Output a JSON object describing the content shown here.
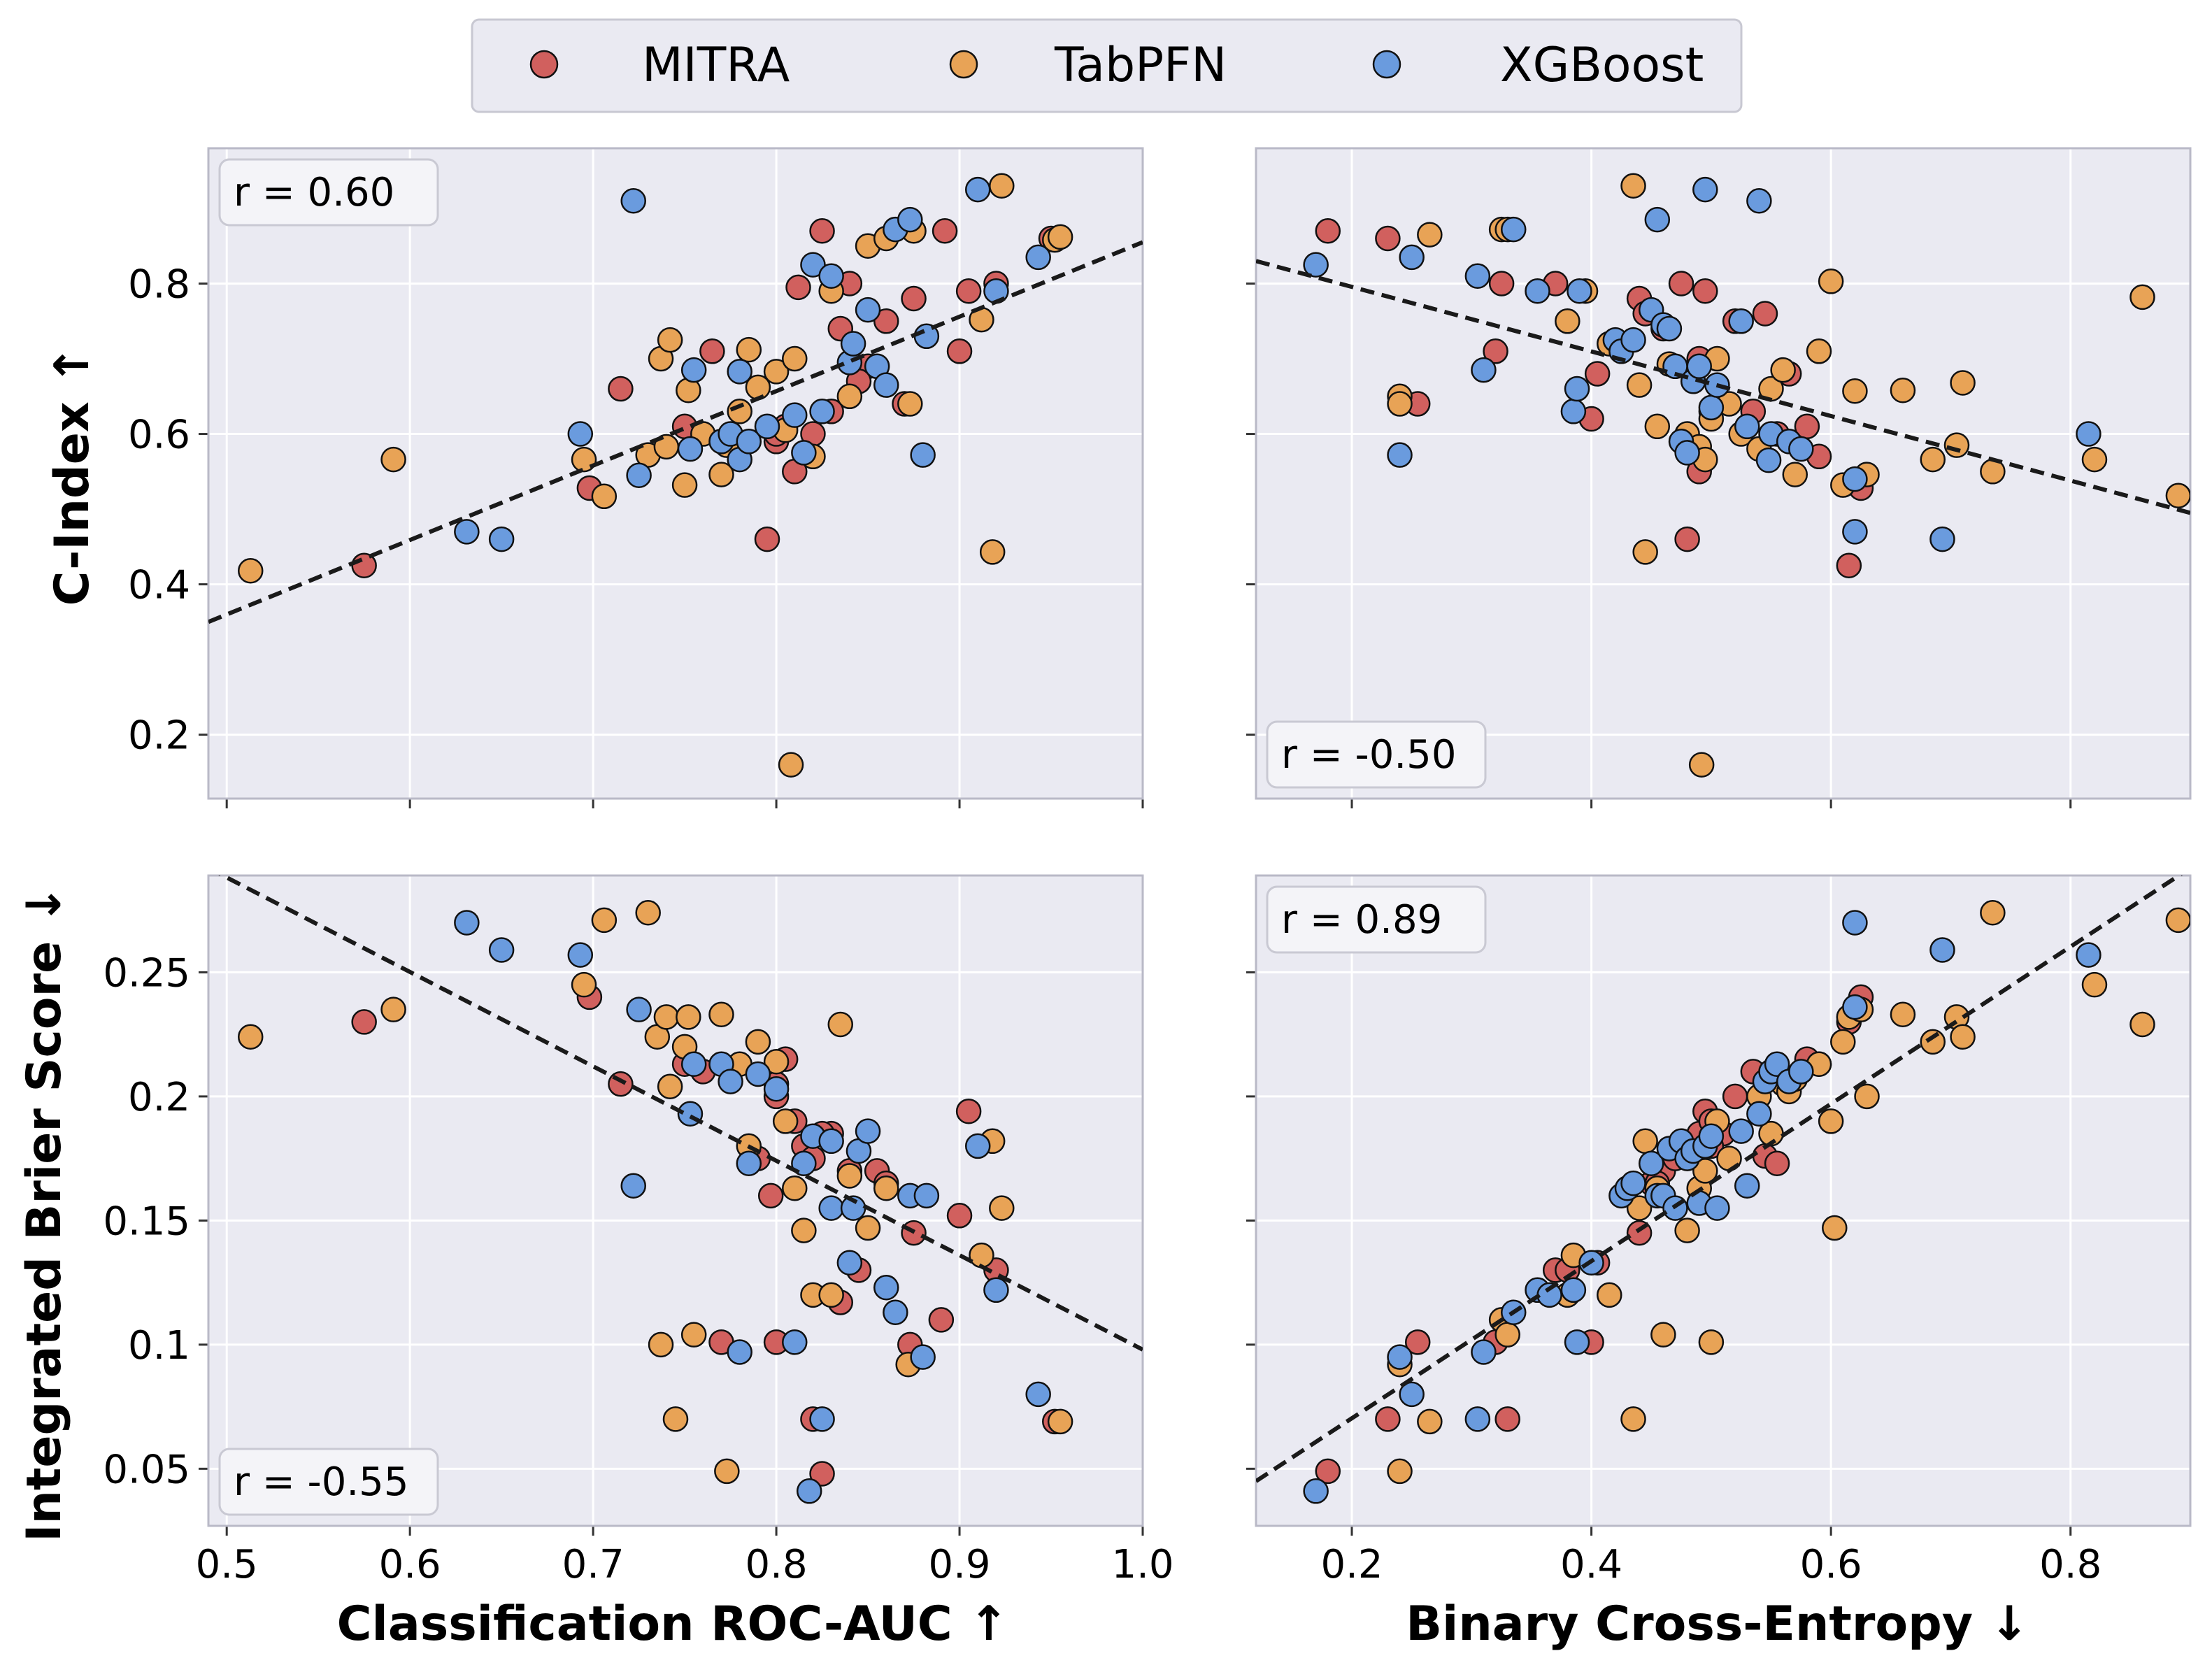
{
  "colors": {
    "mitra": "#D1605E",
    "tabpfn": "#E8A356",
    "xgboost": "#6A9BDE",
    "panel_bg": "#EAEAF2",
    "grid": "#FFFFFF",
    "fit_line": "#1a1a1a"
  },
  "legend": {
    "items": [
      {
        "key": "mitra",
        "label": "MITRA"
      },
      {
        "key": "tabpfn",
        "label": "TabPFN"
      },
      {
        "key": "xgboost",
        "label": "XGBoost"
      }
    ]
  },
  "axes_labels": {
    "x_left": "Classification ROC-AUC ↑",
    "x_right": "Binary Cross-Entropy ↓",
    "y_top": "C-Index ↑",
    "y_bottom": "Integrated Brier Score ↓"
  },
  "chart_data": [
    {
      "type": "scatter",
      "id": "top-left",
      "xlabel": "Classification ROC-AUC ↑",
      "ylabel": "C-Index ↑",
      "xlim": [
        0.49,
        1.0
      ],
      "ylim": [
        0.115,
        0.98
      ],
      "xticks": [
        0.5,
        0.6,
        0.7,
        0.8,
        0.9,
        1.0
      ],
      "yticks": [
        0.2,
        0.4,
        0.6,
        0.8
      ],
      "annotation": "r = 0.60",
      "annotation_position": "top-left",
      "fit_line": {
        "x": [
          0.49,
          1.0
        ],
        "y": [
          0.35,
          0.855
        ]
      },
      "series": [
        {
          "name": "MITRA",
          "x": [
            0.575,
            0.698,
            0.715,
            0.765,
            0.75,
            0.795,
            0.8,
            0.805,
            0.81,
            0.82,
            0.825,
            0.83,
            0.84,
            0.85,
            0.86,
            0.87,
            0.875,
            0.892,
            0.9,
            0.905,
            0.92,
            0.95,
            0.812,
            0.845,
            0.835,
            0.8
          ],
          "y": [
            0.425,
            0.528,
            0.66,
            0.71,
            0.61,
            0.46,
            0.59,
            0.61,
            0.55,
            0.6,
            0.87,
            0.63,
            0.8,
            0.69,
            0.75,
            0.64,
            0.78,
            0.87,
            0.71,
            0.79,
            0.8,
            0.86,
            0.795,
            0.67,
            0.74,
            0.6
          ]
        },
        {
          "name": "TabPFN",
          "x": [
            0.513,
            0.591,
            0.695,
            0.706,
            0.73,
            0.737,
            0.74,
            0.742,
            0.75,
            0.752,
            0.76,
            0.77,
            0.773,
            0.78,
            0.785,
            0.79,
            0.8,
            0.805,
            0.808,
            0.81,
            0.82,
            0.83,
            0.84,
            0.85,
            0.86,
            0.873,
            0.875,
            0.912,
            0.918,
            0.923,
            0.952,
            0.955
          ],
          "y": [
            0.418,
            0.566,
            0.566,
            0.517,
            0.572,
            0.7,
            0.583,
            0.725,
            0.532,
            0.658,
            0.6,
            0.546,
            0.585,
            0.63,
            0.712,
            0.662,
            0.683,
            0.605,
            0.16,
            0.7,
            0.57,
            0.79,
            0.65,
            0.85,
            0.86,
            0.64,
            0.87,
            0.752,
            0.443,
            0.93,
            0.858,
            0.862
          ]
        },
        {
          "name": "XGBoost",
          "x": [
            0.631,
            0.65,
            0.693,
            0.722,
            0.725,
            0.753,
            0.755,
            0.77,
            0.775,
            0.78,
            0.785,
            0.795,
            0.81,
            0.815,
            0.82,
            0.825,
            0.83,
            0.84,
            0.842,
            0.85,
            0.855,
            0.86,
            0.865,
            0.873,
            0.88,
            0.882,
            0.91,
            0.92,
            0.943,
            0.78
          ],
          "y": [
            0.47,
            0.46,
            0.6,
            0.91,
            0.545,
            0.58,
            0.685,
            0.59,
            0.6,
            0.566,
            0.59,
            0.61,
            0.625,
            0.575,
            0.825,
            0.63,
            0.81,
            0.695,
            0.72,
            0.765,
            0.69,
            0.665,
            0.872,
            0.885,
            0.572,
            0.73,
            0.925,
            0.79,
            0.835,
            0.683
          ]
        }
      ]
    },
    {
      "type": "scatter",
      "id": "top-right",
      "xlabel": "Binary Cross-Entropy ↓",
      "ylabel": "C-Index ↑",
      "xlim": [
        0.12,
        0.9
      ],
      "ylim": [
        0.115,
        0.98
      ],
      "xticks": [
        0.2,
        0.4,
        0.6,
        0.8
      ],
      "yticks": [
        0.2,
        0.4,
        0.6,
        0.8
      ],
      "annotation": "r = -0.50",
      "annotation_position": "bottom-left",
      "fit_line": {
        "x": [
          0.12,
          0.9
        ],
        "y": [
          0.83,
          0.495
        ]
      },
      "series": [
        {
          "name": "MITRA",
          "x": [
            0.18,
            0.23,
            0.255,
            0.32,
            0.325,
            0.37,
            0.4,
            0.405,
            0.44,
            0.445,
            0.46,
            0.475,
            0.48,
            0.49,
            0.495,
            0.5,
            0.52,
            0.535,
            0.545,
            0.555,
            0.565,
            0.58,
            0.59,
            0.615,
            0.625,
            0.49
          ],
          "y": [
            0.87,
            0.86,
            0.64,
            0.71,
            0.8,
            0.8,
            0.62,
            0.68,
            0.78,
            0.76,
            0.74,
            0.8,
            0.46,
            0.55,
            0.79,
            0.63,
            0.75,
            0.63,
            0.76,
            0.6,
            0.68,
            0.61,
            0.57,
            0.425,
            0.528,
            0.7
          ]
        },
        {
          "name": "TabPFN",
          "x": [
            0.24,
            0.24,
            0.265,
            0.325,
            0.33,
            0.38,
            0.395,
            0.415,
            0.435,
            0.44,
            0.445,
            0.455,
            0.465,
            0.48,
            0.49,
            0.492,
            0.495,
            0.505,
            0.515,
            0.525,
            0.54,
            0.55,
            0.56,
            0.57,
            0.59,
            0.6,
            0.61,
            0.62,
            0.63,
            0.66,
            0.685,
            0.705,
            0.71,
            0.735,
            0.82,
            0.86,
            0.89,
            0.5
          ],
          "y": [
            0.65,
            0.64,
            0.865,
            0.872,
            0.872,
            0.75,
            0.79,
            0.72,
            0.93,
            0.665,
            0.443,
            0.61,
            0.693,
            0.6,
            0.583,
            0.16,
            0.566,
            0.7,
            0.64,
            0.6,
            0.58,
            0.66,
            0.685,
            0.546,
            0.71,
            0.803,
            0.532,
            0.657,
            0.546,
            0.658,
            0.566,
            0.585,
            0.668,
            0.55,
            0.566,
            0.782,
            0.518,
            0.62
          ]
        },
        {
          "name": "XGBoost",
          "x": [
            0.17,
            0.25,
            0.305,
            0.31,
            0.335,
            0.355,
            0.385,
            0.388,
            0.39,
            0.42,
            0.425,
            0.435,
            0.45,
            0.455,
            0.46,
            0.465,
            0.47,
            0.475,
            0.48,
            0.485,
            0.49,
            0.495,
            0.5,
            0.505,
            0.525,
            0.53,
            0.54,
            0.548,
            0.55,
            0.565,
            0.575,
            0.62,
            0.62,
            0.693,
            0.815,
            0.24
          ],
          "y": [
            0.825,
            0.835,
            0.81,
            0.685,
            0.872,
            0.79,
            0.63,
            0.66,
            0.79,
            0.725,
            0.71,
            0.725,
            0.765,
            0.885,
            0.745,
            0.74,
            0.69,
            0.59,
            0.575,
            0.67,
            0.69,
            0.925,
            0.635,
            0.665,
            0.75,
            0.61,
            0.91,
            0.565,
            0.6,
            0.59,
            0.58,
            0.47,
            0.54,
            0.46,
            0.6,
            0.572
          ]
        }
      ]
    },
    {
      "type": "scatter",
      "id": "bottom-left",
      "xlabel": "Classification ROC-AUC ↑",
      "ylabel": "Integrated Brier Score ↓",
      "xlim": [
        0.49,
        1.0
      ],
      "ylim": [
        0.027,
        0.289
      ],
      "xticks": [
        0.5,
        0.6,
        0.7,
        0.8,
        0.9,
        1.0
      ],
      "yticks": [
        0.05,
        0.1,
        0.15,
        0.2,
        0.25
      ],
      "annotation": "r = -0.55",
      "annotation_position": "bottom-left",
      "fit_line": {
        "x": [
          0.49,
          1.0
        ],
        "y": [
          0.292,
          0.098
        ]
      },
      "series": [
        {
          "name": "MITRA",
          "x": [
            0.575,
            0.698,
            0.715,
            0.75,
            0.76,
            0.77,
            0.79,
            0.797,
            0.8,
            0.8,
            0.805,
            0.81,
            0.815,
            0.82,
            0.825,
            0.83,
            0.835,
            0.84,
            0.845,
            0.855,
            0.86,
            0.873,
            0.875,
            0.89,
            0.9,
            0.905,
            0.92,
            0.952,
            0.82,
            0.825,
            0.8
          ],
          "y": [
            0.23,
            0.24,
            0.205,
            0.213,
            0.21,
            0.101,
            0.175,
            0.16,
            0.2,
            0.101,
            0.215,
            0.19,
            0.18,
            0.07,
            0.048,
            0.185,
            0.117,
            0.17,
            0.13,
            0.17,
            0.165,
            0.1,
            0.145,
            0.11,
            0.152,
            0.194,
            0.13,
            0.069,
            0.175,
            0.185,
            0.205
          ]
        },
        {
          "name": "TabPFN",
          "x": [
            0.513,
            0.591,
            0.695,
            0.706,
            0.73,
            0.735,
            0.737,
            0.74,
            0.742,
            0.745,
            0.75,
            0.752,
            0.755,
            0.77,
            0.773,
            0.78,
            0.785,
            0.79,
            0.8,
            0.805,
            0.81,
            0.815,
            0.82,
            0.83,
            0.835,
            0.84,
            0.85,
            0.86,
            0.872,
            0.912,
            0.918,
            0.923,
            0.955
          ],
          "y": [
            0.224,
            0.235,
            0.245,
            0.271,
            0.274,
            0.224,
            0.1,
            0.232,
            0.204,
            0.07,
            0.22,
            0.232,
            0.104,
            0.233,
            0.049,
            0.213,
            0.18,
            0.222,
            0.214,
            0.19,
            0.163,
            0.146,
            0.12,
            0.12,
            0.229,
            0.168,
            0.147,
            0.163,
            0.092,
            0.136,
            0.182,
            0.155,
            0.069
          ]
        },
        {
          "name": "XGBoost",
          "x": [
            0.631,
            0.65,
            0.693,
            0.722,
            0.725,
            0.753,
            0.755,
            0.77,
            0.775,
            0.78,
            0.785,
            0.79,
            0.8,
            0.81,
            0.815,
            0.82,
            0.825,
            0.83,
            0.83,
            0.84,
            0.842,
            0.845,
            0.85,
            0.86,
            0.865,
            0.873,
            0.88,
            0.882,
            0.91,
            0.92,
            0.943,
            0.818
          ],
          "y": [
            0.27,
            0.259,
            0.257,
            0.164,
            0.235,
            0.193,
            0.213,
            0.213,
            0.206,
            0.097,
            0.173,
            0.209,
            0.203,
            0.101,
            0.173,
            0.184,
            0.07,
            0.155,
            0.182,
            0.133,
            0.155,
            0.178,
            0.186,
            0.123,
            0.113,
            0.16,
            0.095,
            0.16,
            0.18,
            0.122,
            0.08,
            0.041
          ]
        }
      ]
    },
    {
      "type": "scatter",
      "id": "bottom-right",
      "xlabel": "Binary Cross-Entropy ↓",
      "ylabel": "Integrated Brier Score ↓",
      "xlim": [
        0.12,
        0.9
      ],
      "ylim": [
        0.027,
        0.289
      ],
      "xticks": [
        0.2,
        0.4,
        0.6,
        0.8
      ],
      "yticks": [
        0.05,
        0.1,
        0.15,
        0.2,
        0.25
      ],
      "annotation": "r = 0.89",
      "annotation_position": "top-left",
      "fit_line": {
        "x": [
          0.12,
          0.9
        ],
        "y": [
          0.045,
          0.292
        ]
      },
      "series": [
        {
          "name": "MITRA",
          "x": [
            0.18,
            0.23,
            0.255,
            0.32,
            0.33,
            0.37,
            0.38,
            0.4,
            0.405,
            0.44,
            0.45,
            0.46,
            0.47,
            0.48,
            0.49,
            0.495,
            0.5,
            0.51,
            0.52,
            0.535,
            0.545,
            0.555,
            0.565,
            0.58,
            0.59,
            0.615,
            0.625,
            0.455,
            0.5
          ],
          "y": [
            0.049,
            0.07,
            0.101,
            0.101,
            0.07,
            0.13,
            0.13,
            0.101,
            0.133,
            0.145,
            0.165,
            0.17,
            0.175,
            0.178,
            0.185,
            0.194,
            0.19,
            0.185,
            0.2,
            0.21,
            0.176,
            0.173,
            0.205,
            0.215,
            0.213,
            0.23,
            0.24,
            0.165,
            0.18
          ]
        },
        {
          "name": "TabPFN",
          "x": [
            0.24,
            0.24,
            0.265,
            0.325,
            0.33,
            0.38,
            0.385,
            0.415,
            0.435,
            0.44,
            0.445,
            0.455,
            0.46,
            0.48,
            0.49,
            0.495,
            0.5,
            0.505,
            0.515,
            0.54,
            0.55,
            0.56,
            0.565,
            0.57,
            0.59,
            0.6,
            0.603,
            0.61,
            0.615,
            0.625,
            0.63,
            0.66,
            0.685,
            0.705,
            0.71,
            0.735,
            0.82,
            0.86,
            0.89
          ],
          "y": [
            0.049,
            0.092,
            0.069,
            0.11,
            0.104,
            0.12,
            0.136,
            0.12,
            0.07,
            0.155,
            0.182,
            0.163,
            0.104,
            0.146,
            0.163,
            0.17,
            0.101,
            0.19,
            0.175,
            0.2,
            0.185,
            0.205,
            0.202,
            0.207,
            0.213,
            0.19,
            0.147,
            0.222,
            0.232,
            0.235,
            0.2,
            0.233,
            0.222,
            0.232,
            0.224,
            0.274,
            0.245,
            0.229,
            0.271
          ]
        },
        {
          "name": "XGBoost",
          "x": [
            0.17,
            0.24,
            0.25,
            0.305,
            0.31,
            0.335,
            0.355,
            0.365,
            0.385,
            0.388,
            0.4,
            0.425,
            0.43,
            0.435,
            0.45,
            0.455,
            0.46,
            0.465,
            0.47,
            0.475,
            0.48,
            0.485,
            0.49,
            0.495,
            0.5,
            0.505,
            0.525,
            0.53,
            0.54,
            0.545,
            0.55,
            0.555,
            0.565,
            0.575,
            0.62,
            0.62,
            0.693,
            0.815
          ],
          "y": [
            0.041,
            0.095,
            0.08,
            0.07,
            0.097,
            0.113,
            0.122,
            0.12,
            0.122,
            0.101,
            0.133,
            0.16,
            0.163,
            0.165,
            0.173,
            0.16,
            0.16,
            0.179,
            0.155,
            0.182,
            0.175,
            0.178,
            0.157,
            0.18,
            0.184,
            0.155,
            0.186,
            0.164,
            0.193,
            0.206,
            0.21,
            0.213,
            0.206,
            0.21,
            0.27,
            0.236,
            0.259,
            0.257
          ]
        }
      ]
    }
  ]
}
